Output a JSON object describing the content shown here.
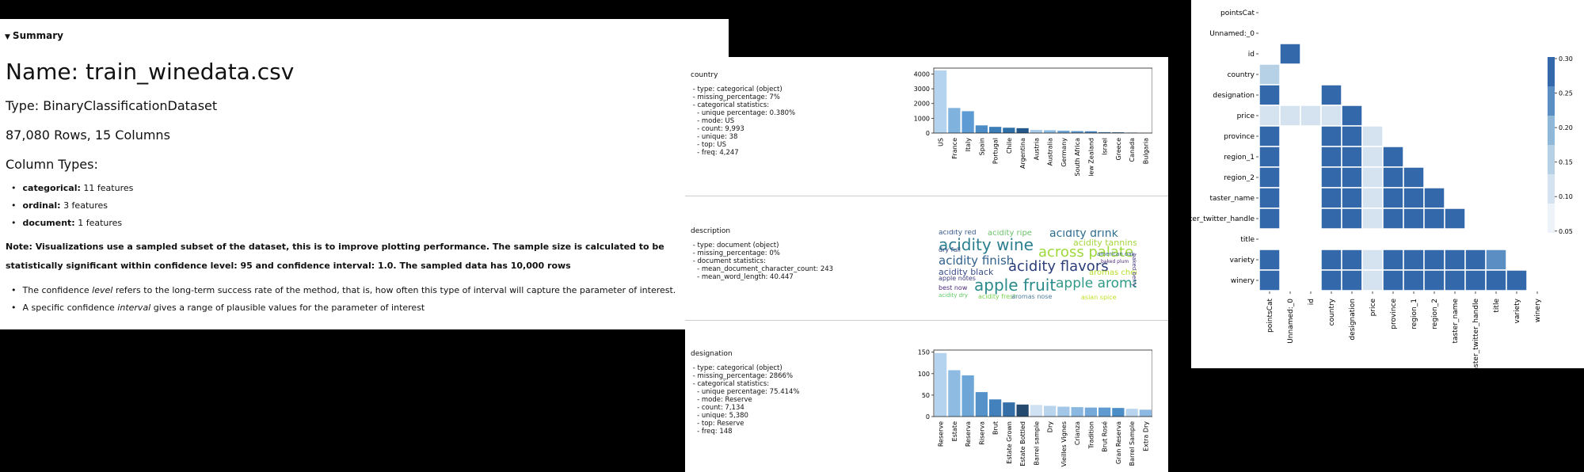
{
  "summary": {
    "toggle_label": "Summary",
    "name_line": "Name: train_winedata.csv",
    "type_line": "Type: BinaryClassificationDataset",
    "size_line": "87,080 Rows, 15 Columns",
    "column_types_heading": "Column Types:",
    "column_types": [
      {
        "name": "categorical:",
        "value": "11 features"
      },
      {
        "name": "ordinal:",
        "value": "3 features"
      },
      {
        "name": "document:",
        "value": "1 features"
      }
    ],
    "note": "Note: Visualizations use a sampled subset of the dataset, this is to improve plotting performance. The sample size is calculated to be statistically significant within confidence level: 95 and confidence interval: 1.0. The sampled data has 10,000 rows",
    "bullet1_pre": "The confidence ",
    "bullet1_em": "level",
    "bullet1_post": " refers to the long-term success rate of the method, that is, how often this type of interval will capture the parameter of interest.",
    "bullet2_pre": "A specific confidence ",
    "bullet2_em": "interval",
    "bullet2_post": " gives a range of plausible values for the parameter of interest"
  },
  "columns": {
    "country": {
      "name": "country",
      "stats": " - type: categorical (object)\n - missing_percentage: 7%\n - categorical statistics:\n   - unique percentage: 0.380%\n   - mode: US\n   - count: 9,993\n   - unique: 38\n   - top: US\n   - freq: 4,247"
    },
    "description": {
      "name": "description",
      "stats": " - type: document (object)\n - missing_percentage: 0%\n - document statistics:\n   - mean_document_character_count: 243\n   - mean_word_length: 40.447"
    },
    "designation": {
      "name": "designation",
      "stats": " - type: categorical (object)\n - missing_percentage: 2866%\n - categorical statistics:\n   - unique percentage: 75.414%\n   - mode: Reserve\n   - count: 7,134\n   - unique: 5,380\n   - top: Reserve\n   - freq: 148"
    }
  },
  "wordcloud": [
    {
      "text": "acidity red",
      "color": "#3b5b8c"
    },
    {
      "text": "acidity ripe",
      "color": "#6cc06a"
    },
    {
      "text": "acidity drink",
      "color": "#2f6d8e"
    },
    {
      "text": "acidity wine",
      "color": "#2b7f8e"
    },
    {
      "text": "acidity tannins",
      "color": "#a7d63f"
    },
    {
      "text": "dry full",
      "color": "#3d4a89"
    },
    {
      "text": "across palate",
      "color": "#9ed93a"
    },
    {
      "text": "acidity finish",
      "color": "#33618d"
    },
    {
      "text": "acidity flavors",
      "color": "#2c3e7a"
    },
    {
      "text": "acidity black",
      "color": "#3a4f8a"
    },
    {
      "text": "aromas cherry",
      "color": "#b8de29"
    },
    {
      "text": "apple notes",
      "color": "#3f3d7e"
    },
    {
      "text": "apple fruit",
      "color": "#2a8b8a"
    },
    {
      "text": "apple aromas",
      "color": "#2f9a87"
    },
    {
      "text": "best now",
      "color": "#4a2c7a"
    },
    {
      "text": "acidity dry",
      "color": "#5dc863"
    },
    {
      "text": "acidity fresh",
      "color": "#7ad151"
    },
    {
      "text": "aromas nose",
      "color": "#4f7ea0"
    },
    {
      "text": "asian spice",
      "color": "#c2df23"
    },
    {
      "text": "american oak",
      "color": "#3d6a91"
    },
    {
      "text": "baked plum",
      "color": "#4c2a75"
    },
    {
      "text": "baked berry",
      "color": "#433a83"
    }
  ],
  "chart_data": [
    {
      "type": "bar",
      "title": "",
      "categories": [
        "US",
        "France",
        "Italy",
        "Spain",
        "Portugal",
        "Chile",
        "Argentina",
        "Austria",
        "Australia",
        "Germany",
        "South Africa",
        "New Zealand",
        "Israel",
        "Greece",
        "Canada",
        "Bulgaria"
      ],
      "values": [
        4247,
        1700,
        1480,
        520,
        420,
        360,
        330,
        210,
        190,
        160,
        130,
        120,
        60,
        50,
        30,
        15
      ],
      "ylim": [
        0,
        4400
      ],
      "yticks": [
        0,
        1000,
        2000,
        3000,
        4000
      ],
      "colors": [
        "#b3d3ee",
        "#7fb3de",
        "#5c9bd3",
        "#4b8cc6",
        "#3a7db7",
        "#2f6fa8",
        "#24578a",
        "#a9cbe8",
        "#8dbbe2",
        "#6ea6d8",
        "#5a95cc",
        "#4985bf",
        "#3b78b2",
        "#2f69a1",
        "#2a5e92",
        "#234f7d"
      ]
    },
    {
      "type": "bar",
      "title": "",
      "categories": [
        "Reserve",
        "Estate",
        "Reserva",
        "Riserva",
        "Brut",
        "Estate Grown",
        "Estate Bottled",
        "Barrel sample",
        "Dry",
        "Vieilles Vignes",
        "Crianza",
        "Tradition",
        "Brut Rosé",
        "Gran Reserva",
        "Barrel Sample",
        "Extra Dry"
      ],
      "values": [
        148,
        108,
        96,
        57,
        40,
        33,
        28,
        27,
        25,
        23,
        22,
        21,
        21,
        20,
        18,
        16
      ],
      "ylim": [
        0,
        155
      ],
      "yticks": [
        0,
        50,
        100,
        150
      ],
      "colors": [
        "#b3d3ee",
        "#8dbbe2",
        "#6ea6d8",
        "#5592c9",
        "#4281bb",
        "#356fa8",
        "#244a70",
        "#cfe1f2",
        "#b9d5ee",
        "#a1c6e8",
        "#8ab8e1",
        "#74a9d9",
        "#5f9bd0",
        "#4b8dc6",
        "#b8d4ee",
        "#8db9e3"
      ]
    },
    {
      "type": "heatmap",
      "title": "",
      "rows": [
        "pointsCat",
        "Unnamed:_0",
        "id",
        "country",
        "designation",
        "price",
        "province",
        "region_1",
        "region_2",
        "taster_name",
        "taster_twitter_handle",
        "title",
        "variety",
        "winery"
      ],
      "columns": [
        "pointsCat",
        "Unnamed:_0",
        "id",
        "country",
        "designation",
        "price",
        "province",
        "region_1",
        "region_2",
        "taster_name",
        "taster_twitter_handle",
        "title",
        "variety",
        "winery"
      ],
      "values": [
        [],
        [],
        [
          null,
          0.3
        ],
        [
          0.12,
          null,
          null
        ],
        [
          0.3,
          null,
          null,
          0.3
        ],
        [
          0.04,
          0.04,
          0.04,
          0.04,
          0.3
        ],
        [
          0.3,
          null,
          null,
          0.3,
          0.3,
          0.08
        ],
        [
          0.3,
          null,
          null,
          0.3,
          0.3,
          0.04,
          0.3
        ],
        [
          0.3,
          null,
          null,
          0.3,
          0.3,
          0.04,
          0.3,
          0.3
        ],
        [
          0.3,
          null,
          null,
          0.3,
          0.3,
          0.04,
          0.3,
          0.3,
          0.3
        ],
        [
          0.3,
          null,
          null,
          0.3,
          0.3,
          0.04,
          0.3,
          0.3,
          0.3,
          0.3
        ],
        [],
        [
          0.3,
          null,
          null,
          0.3,
          0.3,
          0.08,
          0.3,
          0.3,
          0.3,
          0.3,
          0.3,
          0.25
        ],
        [
          0.3,
          null,
          null,
          0.3,
          0.3,
          0.04,
          0.3,
          0.3,
          0.3,
          0.3,
          0.3,
          0.3,
          0.3
        ]
      ],
      "colorbar_ticks": [
        "0.30",
        "0.25",
        "0.20",
        "0.15",
        "0.10",
        "0.05"
      ],
      "color_levels": [
        "#eef3fa",
        "#d5e3f0",
        "#b6d0e6",
        "#8fb8d9",
        "#5b8fc4",
        "#3369aa"
      ]
    }
  ]
}
